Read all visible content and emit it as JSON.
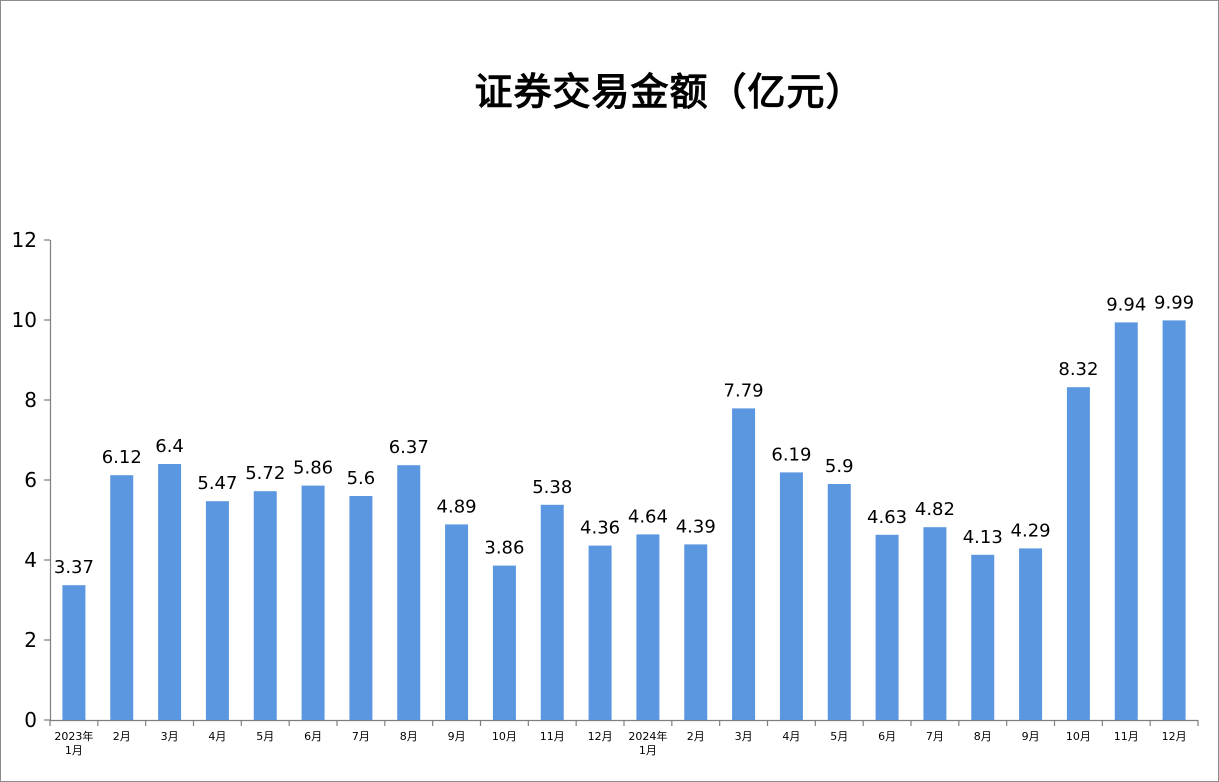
{
  "chart_data": {
    "type": "bar",
    "title": "证券交易金额（亿元）",
    "categories": [
      [
        "2023年",
        "1月"
      ],
      [
        "2月"
      ],
      [
        "3月"
      ],
      [
        "4月"
      ],
      [
        "5月"
      ],
      [
        "6月"
      ],
      [
        "7月"
      ],
      [
        "8月"
      ],
      [
        "9月"
      ],
      [
        "10月"
      ],
      [
        "11月"
      ],
      [
        "12月"
      ],
      [
        "2024年",
        "1月"
      ],
      [
        "2月"
      ],
      [
        "3月"
      ],
      [
        "4月"
      ],
      [
        "5月"
      ],
      [
        "6月"
      ],
      [
        "7月"
      ],
      [
        "8月"
      ],
      [
        "9月"
      ],
      [
        "10月"
      ],
      [
        "11月"
      ],
      [
        "12月"
      ]
    ],
    "values": [
      3.37,
      6.12,
      6.4,
      5.47,
      5.72,
      5.86,
      5.6,
      6.37,
      4.89,
      3.86,
      5.38,
      4.36,
      4.64,
      4.39,
      7.79,
      6.19,
      5.9,
      4.63,
      4.82,
      4.13,
      4.29,
      8.32,
      9.94,
      9.99
    ],
    "data_labels": [
      "3.37",
      "6.12",
      "6.4",
      "5.47",
      "5.72",
      "5.86",
      "5.6",
      "6.37",
      "4.89",
      "3.86",
      "5.38",
      "4.36",
      "4.64",
      "4.39",
      "7.79",
      "6.19",
      "5.9",
      "4.63",
      "4.82",
      "4.13",
      "4.29",
      "8.32",
      "9.94",
      "9.99"
    ],
    "ylim": [
      0,
      12
    ],
    "yticks": [
      0,
      2,
      4,
      6,
      8,
      10,
      12
    ],
    "xlabel": "",
    "ylabel": "",
    "grid": false,
    "legend": "none",
    "bar_color": "#5b97e0",
    "axis_color": "#7f7f7f"
  }
}
